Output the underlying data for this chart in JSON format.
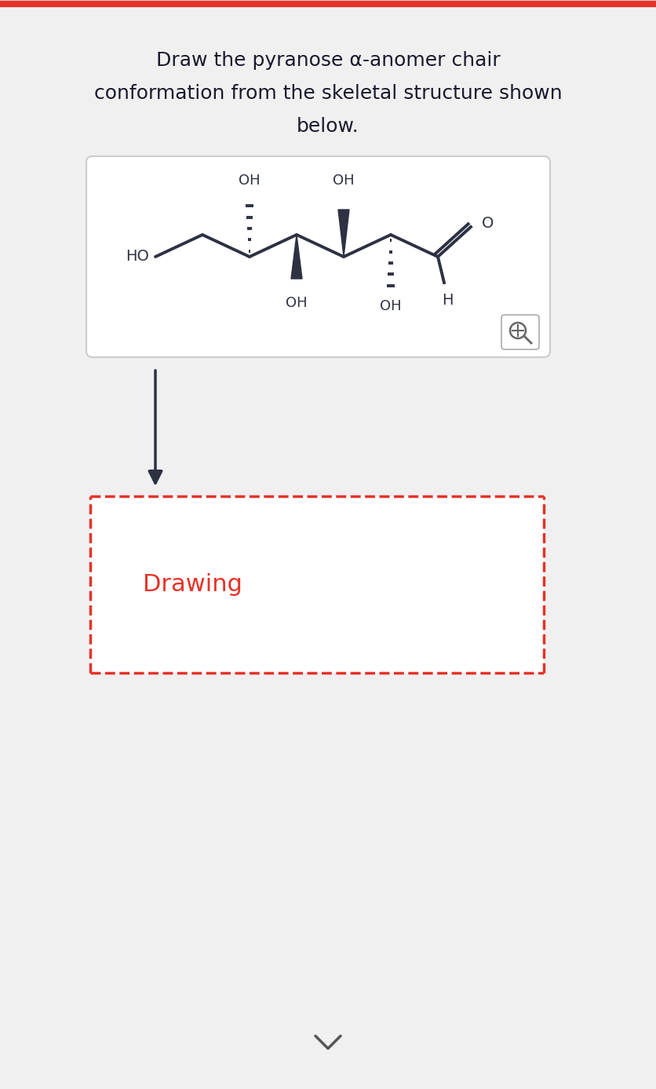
{
  "title_line1": "Draw the pyranose α-anomer chair",
  "title_line2": "conformation from the skeletal structure shown",
  "title_line3": "below.",
  "title_fontsize": 18,
  "title_color": "#1a1a2e",
  "background_color": "#f0f0f0",
  "panel_bg": "#ffffff",
  "dark_color": "#2d3142",
  "red_color": "#e63329",
  "drawing_text": "Drawing",
  "drawing_text_color": "#e63329",
  "drawing_text_fontsize": 22
}
